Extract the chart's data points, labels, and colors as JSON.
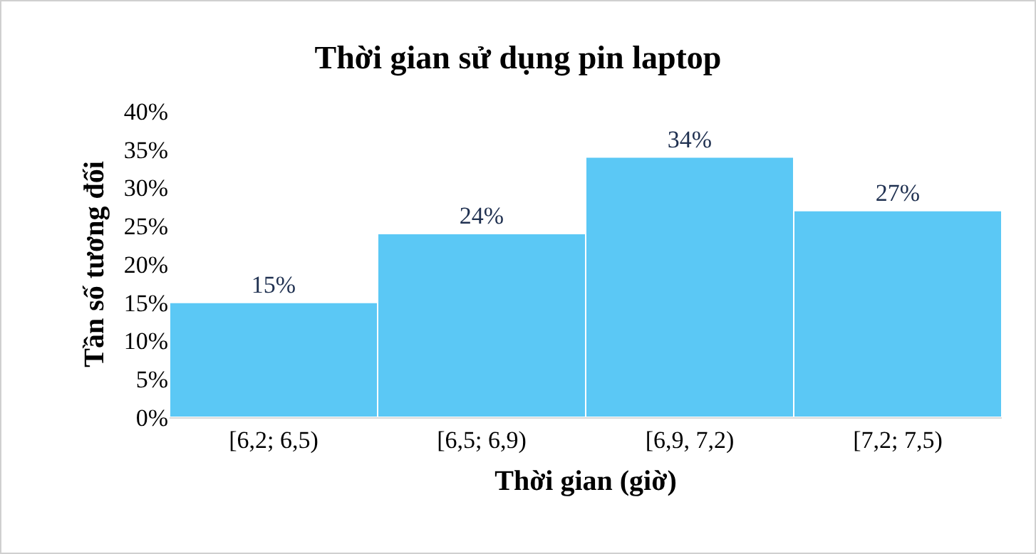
{
  "chart_data": {
    "type": "bar",
    "title": "Thời gian sử dụng pin laptop",
    "xlabel": "Thời gian (giờ)",
    "ylabel": "Tần số tương đối",
    "categories": [
      "[6,2; 6,5)",
      "[6,5; 6,9)",
      "[6,9, 7,2)",
      "[7,2; 7,5)"
    ],
    "values": [
      15,
      24,
      34,
      27
    ],
    "value_labels": [
      "15%",
      "24%",
      "34%",
      "27%"
    ],
    "color": "#5bc8f5",
    "ylim": [
      0,
      40
    ],
    "yticks": [
      {
        "value": 0,
        "label": "0%"
      },
      {
        "value": 5,
        "label": "5%"
      },
      {
        "value": 10,
        "label": "10%"
      },
      {
        "value": 15,
        "label": "15%"
      },
      {
        "value": 20,
        "label": "20%"
      },
      {
        "value": 25,
        "label": "25%"
      },
      {
        "value": 30,
        "label": "30%"
      },
      {
        "value": 35,
        "label": "35%"
      },
      {
        "value": 40,
        "label": "40%"
      }
    ]
  }
}
